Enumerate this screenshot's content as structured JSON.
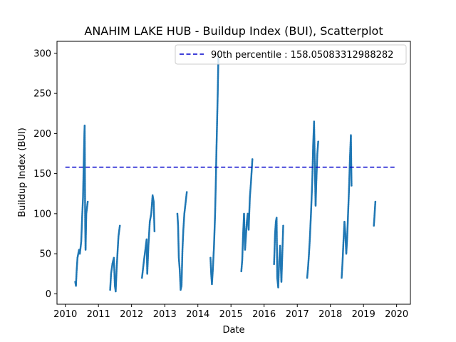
{
  "chart_data": {
    "type": "scatter",
    "title": "ANAHIM LAKE HUB - Buildup Index (BUI), Scatterplot",
    "xlabel": "Date",
    "ylabel": "Buildup Index (BUI)",
    "xlim": [
      "2009-10-01",
      "2020-06-01"
    ],
    "ylim": [
      -13,
      315
    ],
    "xticks": [
      "2010",
      "2011",
      "2012",
      "2013",
      "2014",
      "2015",
      "2016",
      "2017",
      "2018",
      "2019",
      "2020"
    ],
    "yticks": [
      0,
      50,
      100,
      150,
      200,
      250,
      300
    ],
    "grid": false,
    "legend_position": "top-right",
    "point_color": "#1f77b4",
    "reference_line": {
      "label": "90th percentile : 158.05083312988282",
      "value": 158.05083312988282,
      "x_start": "2010-01-01",
      "x_end": "2020-01-01",
      "color": "#0000cc",
      "style": "dashed"
    },
    "season_segments": [
      [
        [
          "2010-04-20",
          15
        ],
        [
          "2010-04-28",
          10
        ],
        [
          "2010-05-05",
          28
        ],
        [
          "2010-05-15",
          45
        ],
        [
          "2010-06-01",
          55
        ],
        [
          "2010-06-10",
          50
        ],
        [
          "2010-06-25",
          65
        ],
        [
          "2010-07-05",
          95
        ],
        [
          "2010-07-15",
          120
        ],
        [
          "2010-07-22",
          160
        ],
        [
          "2010-07-30",
          200
        ],
        [
          "2010-08-02",
          210
        ],
        [
          "2010-08-08",
          85
        ],
        [
          "2010-08-12",
          55
        ],
        [
          "2010-08-20",
          100
        ],
        [
          "2010-09-05",
          115
        ]
      ],
      [
        [
          "2011-05-10",
          5
        ],
        [
          "2011-05-20",
          25
        ],
        [
          "2011-06-05",
          38
        ],
        [
          "2011-06-20",
          45
        ],
        [
          "2011-07-01",
          10
        ],
        [
          "2011-07-10",
          3
        ],
        [
          "2011-07-20",
          30
        ],
        [
          "2011-08-01",
          55
        ],
        [
          "2011-08-10",
          72
        ],
        [
          "2011-08-25",
          85
        ]
      ],
      [
        [
          "2012-04-25",
          20
        ],
        [
          "2012-05-15",
          40
        ],
        [
          "2012-06-01",
          55
        ],
        [
          "2012-06-15",
          68
        ],
        [
          "2012-06-22",
          25
        ],
        [
          "2012-07-05",
          60
        ],
        [
          "2012-07-20",
          90
        ],
        [
          "2012-08-05",
          100
        ],
        [
          "2012-08-20",
          123
        ],
        [
          "2012-09-01",
          115
        ],
        [
          "2012-09-10",
          78
        ]
      ],
      [
        [
          "2013-05-20",
          100
        ],
        [
          "2013-05-28",
          85
        ],
        [
          "2013-06-05",
          45
        ],
        [
          "2013-06-15",
          30
        ],
        [
          "2013-06-25",
          5
        ],
        [
          "2013-07-05",
          10
        ],
        [
          "2013-07-15",
          55
        ],
        [
          "2013-07-25",
          80
        ],
        [
          "2013-08-05",
          100
        ],
        [
          "2013-08-20",
          115
        ],
        [
          "2013-09-01",
          127
        ]
      ],
      [
        [
          "2014-05-20",
          45
        ],
        [
          "2014-05-28",
          25
        ],
        [
          "2014-06-05",
          12
        ],
        [
          "2014-06-15",
          30
        ],
        [
          "2014-06-28",
          60
        ],
        [
          "2014-07-10",
          100
        ],
        [
          "2014-07-18",
          140
        ],
        [
          "2014-07-25",
          180
        ],
        [
          "2014-08-01",
          215
        ],
        [
          "2014-08-08",
          250
        ],
        [
          "2014-08-12",
          275
        ],
        [
          "2014-08-16",
          298
        ]
      ],
      [
        [
          "2015-04-25",
          28
        ],
        [
          "2015-05-05",
          42
        ],
        [
          "2015-05-15",
          75
        ],
        [
          "2015-05-25",
          100
        ],
        [
          "2015-06-05",
          55
        ],
        [
          "2015-06-15",
          72
        ],
        [
          "2015-06-25",
          90
        ],
        [
          "2015-07-05",
          100
        ],
        [
          "2015-07-15",
          80
        ],
        [
          "2015-07-28",
          120
        ],
        [
          "2015-08-10",
          140
        ],
        [
          "2015-08-25",
          168
        ]
      ],
      [
        [
          "2016-04-20",
          37
        ],
        [
          "2016-05-01",
          75
        ],
        [
          "2016-05-10",
          90
        ],
        [
          "2016-05-18",
          95
        ],
        [
          "2016-05-25",
          20
        ],
        [
          "2016-06-05",
          8
        ],
        [
          "2016-06-15",
          40
        ],
        [
          "2016-06-25",
          60
        ],
        [
          "2016-07-10",
          15
        ],
        [
          "2016-07-20",
          50
        ],
        [
          "2016-07-30",
          85
        ]
      ],
      [
        [
          "2017-04-20",
          20
        ],
        [
          "2017-05-01",
          35
        ],
        [
          "2017-05-10",
          50
        ],
        [
          "2017-05-20",
          70
        ],
        [
          "2017-06-01",
          100
        ],
        [
          "2017-06-15",
          140
        ],
        [
          "2017-06-25",
          185
        ],
        [
          "2017-07-05",
          215
        ],
        [
          "2017-07-15",
          150
        ],
        [
          "2017-07-22",
          110
        ],
        [
          "2017-07-30",
          140
        ],
        [
          "2017-08-10",
          175
        ],
        [
          "2017-08-20",
          190
        ]
      ],
      [
        [
          "2018-05-05",
          20
        ],
        [
          "2018-05-15",
          40
        ],
        [
          "2018-05-25",
          65
        ],
        [
          "2018-06-05",
          90
        ],
        [
          "2018-06-15",
          75
        ],
        [
          "2018-06-25",
          50
        ],
        [
          "2018-07-05",
          70
        ],
        [
          "2018-07-15",
          100
        ],
        [
          "2018-07-25",
          130
        ],
        [
          "2018-08-05",
          170
        ],
        [
          "2018-08-15",
          198
        ],
        [
          "2018-08-22",
          135
        ]
      ],
      [
        [
          "2019-04-25",
          85
        ],
        [
          "2019-05-01",
          95
        ],
        [
          "2019-05-08",
          108
        ],
        [
          "2019-05-12",
          115
        ]
      ]
    ]
  }
}
